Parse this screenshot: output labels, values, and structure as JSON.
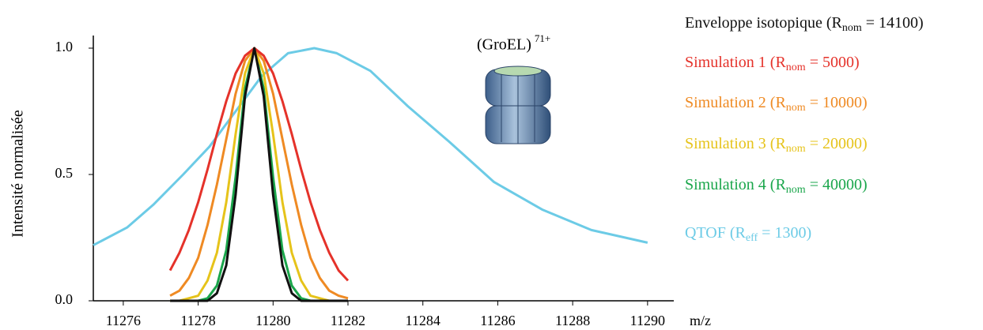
{
  "chart_data": {
    "type": "line",
    "ylabel": "Intensité normalisée",
    "xlabel": "m/z",
    "annotation": "(GroEL)",
    "annotation_superscript": "71+",
    "xlim": [
      11275.2,
      11290.7
    ],
    "ylim": [
      0,
      1.05
    ],
    "xticks": [
      11276,
      11278,
      11280,
      11282,
      11284,
      11286,
      11288,
      11290
    ],
    "yticks": [
      {
        "value": 0,
        "label": "0.0"
      },
      {
        "value": 0.5,
        "label": "0.5"
      },
      {
        "value": 1,
        "label": "1.0"
      }
    ],
    "x": [
      11277.25,
      11277.5,
      11277.75,
      11278,
      11278.25,
      11278.5,
      11278.75,
      11279,
      11279.25,
      11279.5,
      11279.75,
      11280,
      11280.25,
      11280.5,
      11280.75,
      11281,
      11281.25,
      11281.5,
      11281.75,
      11282
    ],
    "series": [
      {
        "name": "Enveloppe isotopique (Rnom = 14100)",
        "color": "#111111",
        "values": [
          0,
          0,
          0,
          0,
          0,
          0.03,
          0.14,
          0.42,
          0.81,
          1,
          0.81,
          0.42,
          0.14,
          0.03,
          0,
          0,
          0,
          0,
          0,
          0
        ]
      },
      {
        "name": "Simulation 1 (Rnom = 5000)",
        "color": "#e5322a",
        "values": [
          0.12,
          0.19,
          0.28,
          0.39,
          0.52,
          0.66,
          0.79,
          0.9,
          0.97,
          1,
          0.97,
          0.9,
          0.79,
          0.66,
          0.52,
          0.39,
          0.28,
          0.19,
          0.12,
          0.08
        ]
      },
      {
        "name": "Simulation 2 (Rnom = 10000)",
        "color": "#ef8a23",
        "values": [
          0.02,
          0.04,
          0.09,
          0.17,
          0.3,
          0.46,
          0.64,
          0.82,
          0.95,
          1,
          0.95,
          0.82,
          0.64,
          0.46,
          0.3,
          0.17,
          0.09,
          0.04,
          0.02,
          0.01
        ]
      },
      {
        "name": "Simulation 3 (Rnom = 20000)",
        "color": "#e6c31a",
        "values": [
          0,
          0,
          0.01,
          0.02,
          0.08,
          0.19,
          0.39,
          0.66,
          0.9,
          1,
          0.9,
          0.66,
          0.39,
          0.19,
          0.08,
          0.02,
          0.01,
          0,
          0,
          0
        ]
      },
      {
        "name": "Simulation 4 (Rnom = 40000)",
        "color": "#1aa64b",
        "values": [
          0,
          0,
          0,
          0,
          0.01,
          0.06,
          0.2,
          0.49,
          0.84,
          1,
          0.84,
          0.49,
          0.2,
          0.06,
          0.01,
          0,
          0,
          0,
          0,
          0
        ]
      },
      {
        "name": "QTOF (Reff = 1300)",
        "color": "#6ccbe6",
        "x": [
          11275.2,
          11276.1,
          11276.8,
          11277.6,
          11278.3,
          11279.0,
          11279.7,
          11280.4,
          11281.1,
          11281.7,
          11282.6,
          11283.6,
          11284.7,
          11285.9,
          11287.2,
          11288.5,
          11290.0
        ],
        "values": [
          0.22,
          0.29,
          0.38,
          0.5,
          0.61,
          0.75,
          0.89,
          0.98,
          1,
          0.98,
          0.91,
          0.77,
          0.63,
          0.47,
          0.36,
          0.28,
          0.23
        ]
      }
    ]
  }
}
